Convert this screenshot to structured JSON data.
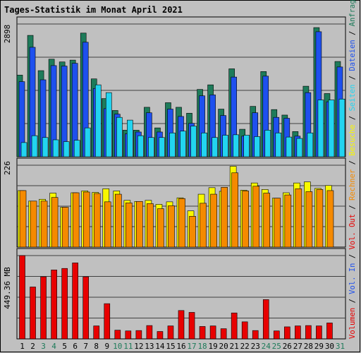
{
  "chart_data": [
    {
      "type": "bar",
      "title": "Tages-Statistik im Monat April 2021",
      "ymax_label": "2898",
      "x": [
        "1",
        "2",
        "3",
        "4",
        "5",
        "6",
        "7",
        "8",
        "9",
        "10",
        "11",
        "12",
        "13",
        "14",
        "15",
        "16",
        "17",
        "18",
        "19",
        "20",
        "21",
        "22",
        "23",
        "24",
        "25",
        "26",
        "27",
        "28",
        "29",
        "30",
        "31"
      ],
      "weekend_days": [
        "3",
        "4",
        "10",
        "11",
        "17",
        "18",
        "24",
        "25",
        "31"
      ],
      "ylim": [
        0,
        2898
      ],
      "series": [
        {
          "name": "Anfragen",
          "color": "#1e7b5a",
          "values": [
            1782,
            2650,
            1880,
            2130,
            2070,
            2110,
            2700,
            1700,
            1270,
            1010,
            580,
            580,
            1080,
            630,
            1180,
            1080,
            950,
            1470,
            1570,
            1040,
            1920,
            600,
            1100,
            1860,
            1030,
            910,
            550,
            1540,
            2820,
            1380,
            2080
          ]
        },
        {
          "name": "Dateien",
          "color": "#1e50ee",
          "values": [
            1640,
            2390,
            1680,
            1990,
            1980,
            2040,
            2500,
            1490,
            1050,
            930,
            500,
            540,
            960,
            540,
            1040,
            880,
            730,
            1330,
            1350,
            900,
            1740,
            450,
            960,
            1760,
            860,
            840,
            450,
            1400,
            2730,
            1200,
            1960
          ]
        },
        {
          "name": "Seiten",
          "color": "#22d4f0",
          "values": [
            310,
            460,
            420,
            370,
            330,
            360,
            630,
            1570,
            1400,
            860,
            800,
            460,
            420,
            420,
            520,
            560,
            670,
            520,
            420,
            470,
            480,
            470,
            440,
            580,
            520,
            430,
            400,
            520,
            1240,
            1240,
            1260
          ]
        }
      ],
      "legend": [
        "Anfragen",
        "Dateien",
        "Seiten"
      ]
    },
    {
      "type": "bar",
      "ymax_label": "226",
      "ylim": [
        0,
        226
      ],
      "series": [
        {
          "name": "Besuche",
          "color": "#f8f800",
          "values": [
            156,
            127,
            132,
            149,
            110,
            150,
            155,
            151,
            161,
            155,
            129,
            126,
            129,
            118,
            125,
            136,
            100,
            146,
            164,
            154,
            223,
            157,
            177,
            159,
            135,
            150,
            177,
            180,
            162,
            170
          ]
        },
        {
          "name": "Rechner",
          "color": "#f58a00",
          "values": [
            156,
            127,
            127,
            137,
            110,
            150,
            152,
            148,
            125,
            146,
            122,
            126,
            120,
            106,
            114,
            134,
            85,
            121,
            146,
            165,
            205,
            155,
            168,
            149,
            135,
            144,
            161,
            153,
            159,
            156
          ]
        }
      ],
      "legend": [
        "Besuche",
        "Rechner"
      ]
    },
    {
      "type": "bar",
      "ymax_label": "449.36 MB",
      "series": [
        {
          "name": "Volumen",
          "color": "#e80000",
          "values": [
            449.36,
            280,
            335,
            372,
            380,
            410,
            335,
            70,
            190,
            47,
            43,
            45,
            72,
            40,
            70,
            153,
            143,
            67,
            70,
            55,
            140,
            92,
            45,
            212,
            43,
            65,
            70,
            72,
            70,
            86
          ]
        }
      ],
      "legend": [
        "Volumen",
        "Vol. In",
        "Vol. Out"
      ]
    }
  ],
  "legend_colors": {
    "Anfragen": "#1e7b5a",
    "Dateien": "#1e50ee",
    "Seiten": "#22d4f0",
    "Besuche": "#f8f800",
    "Rechner": "#f58a00",
    "Vol. Out": "#e80000",
    "Vol. In": "#1e50ee",
    "Volumen": "#e80000"
  },
  "legend_text": [
    {
      "key": "Volumen",
      "label": "Volumen"
    },
    {
      "key": "Vol. In",
      "label": "Vol. In"
    },
    {
      "key": "Vol. Out",
      "label": "Vol. Out"
    },
    {
      "key": "Rechner",
      "label": "Rechner"
    },
    {
      "key": "Besuche",
      "label": "Besuche"
    },
    {
      "key": "Seiten",
      "label": "Seiten"
    },
    {
      "key": "Dateien",
      "label": "Dateien"
    },
    {
      "key": "Anfragen",
      "label": "Anfragen"
    }
  ],
  "colors": {
    "title": "#0000cc",
    "weekday_label": "#000000",
    "weekend_label": "#1e7b5a",
    "plot_background": "#c0c0c0",
    "gridline": "#404040"
  }
}
